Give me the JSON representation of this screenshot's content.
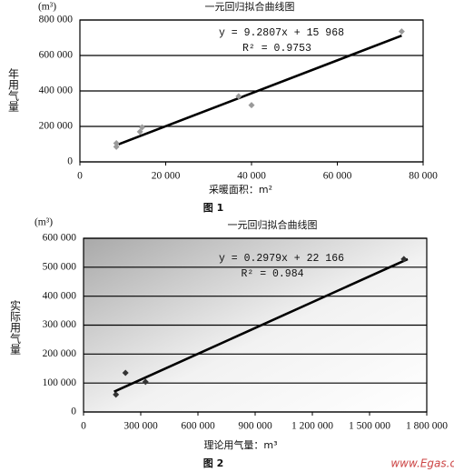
{
  "chart_data": [
    {
      "type": "scatter",
      "title": "一元回归拟合曲线图",
      "y_unit": "(m³)",
      "y_label": "年用气量",
      "x_label": "采暖面积：m²",
      "caption": "图 1",
      "x": [
        8500,
        8500,
        14000,
        14500,
        37000,
        40000,
        75000
      ],
      "values": [
        85000,
        105000,
        170000,
        195000,
        370000,
        320000,
        735000
      ],
      "marker_color": "#9a9a9a",
      "trendline": {
        "x": [
          9000,
          75000
        ],
        "y": [
          99000,
          712000
        ],
        "color": "#000000",
        "equation": "y = 9.2807x + 15 968",
        "r2": "R² = 0.9753"
      },
      "xlim": [
        0,
        80000
      ],
      "ylim": [
        0,
        800000
      ],
      "xticks": [
        0,
        {
          "value": 20000,
          "label": "20 000"
        },
        {
          "value": 40000,
          "label": "40 000"
        },
        {
          "value": 60000,
          "label": "60 000"
        },
        {
          "value": 80000,
          "label": "80 000"
        }
      ],
      "yticks": [
        0,
        {
          "value": 200000,
          "label": "200 000"
        },
        {
          "value": 400000,
          "label": "400 000"
        },
        {
          "value": 600000,
          "label": "600 000"
        },
        {
          "value": 800000,
          "label": "800 000"
        }
      ],
      "grid": true,
      "background": "plain"
    },
    {
      "type": "scatter",
      "title": "一元回归拟合曲线图",
      "y_unit": "(m³)",
      "y_label": "实际用气量",
      "x_label": "理论用气量：m³",
      "caption": "图 2",
      "x": [
        170000,
        220000,
        325000,
        1680000
      ],
      "values": [
        60000,
        135000,
        104000,
        528000
      ],
      "marker_color": "#333333",
      "trendline": {
        "x": [
          160000,
          1700000
        ],
        "y": [
          70000,
          528000
        ],
        "color": "#000000",
        "equation": "y = 0.2979x + 22 166",
        "r2": "R² = 0.984"
      },
      "xlim": [
        0,
        1800000
      ],
      "ylim": [
        0,
        600000
      ],
      "xticks": [
        0,
        {
          "value": 300000,
          "label": "300 000"
        },
        {
          "value": 600000,
          "label": "600 000"
        },
        {
          "value": 900000,
          "label": "900 000"
        },
        {
          "value": 1200000,
          "label": "1 200 000"
        },
        {
          "value": 1500000,
          "label": "1 500 000"
        },
        {
          "value": 1800000,
          "label": "1 800 000"
        }
      ],
      "yticks": [
        0,
        {
          "value": 100000,
          "label": "100 000"
        },
        {
          "value": 200000,
          "label": "200 000"
        },
        {
          "value": 300000,
          "label": "300 000"
        },
        {
          "value": 400000,
          "label": "400 000"
        },
        {
          "value": 500000,
          "label": "500 000"
        },
        {
          "value": {
            "value": 600000,
            "label": "600 000"
          }
        }
      ],
      "grid": true,
      "background": "gradient"
    }
  ],
  "watermark": "www.Egas.cn"
}
